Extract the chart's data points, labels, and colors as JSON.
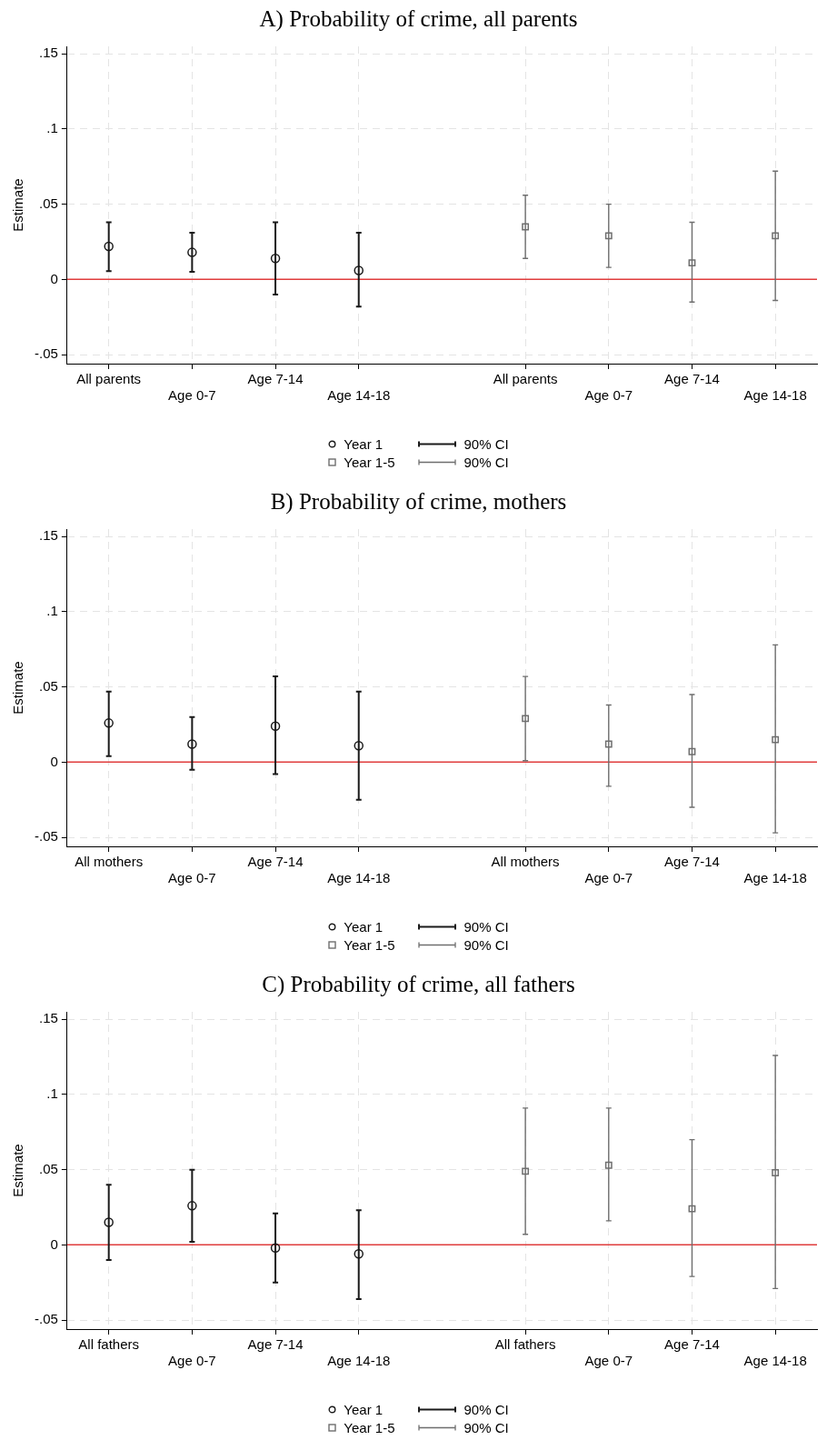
{
  "chart_data": [
    {
      "type": "scatter",
      "title": "A) Probability of crime, all parents",
      "ylabel": "Estimate",
      "categories": [
        "All parents",
        "Age 0-7",
        "Age 7-14",
        "Age 14-18",
        null,
        "All parents",
        "Age 0-7",
        "Age 7-14",
        "Age 14-18"
      ],
      "ylim": [
        -0.056,
        0.155
      ],
      "yticks": [
        {
          "value": -0.05,
          "label": "-.05"
        },
        {
          "value": 0,
          "label": "0"
        },
        {
          "value": 0.05,
          "label": ".05"
        },
        {
          "value": 0.1,
          "label": ".1"
        },
        {
          "value": 0.15,
          "label": ".15"
        }
      ],
      "grid": true,
      "legend": "bottom",
      "ref_lines": [
        {
          "axis": "y",
          "value": 0,
          "color": "#e03c3c"
        }
      ],
      "annotations": [
        "90% CI",
        "90% CI"
      ],
      "series": [
        {
          "name": "Year 1",
          "color": "#1a1a1a",
          "marker": "circle",
          "values": [
            0.022,
            0.018,
            0.014,
            0.006,
            null,
            null,
            null,
            null,
            null
          ],
          "errors": [
            [
              0.0055,
              0.038
            ],
            [
              0.005,
              0.031
            ],
            [
              -0.01,
              0.038
            ],
            [
              -0.018,
              0.031
            ],
            null,
            null,
            null,
            null,
            null
          ]
        },
        {
          "name": "Year 1-5",
          "color": "#6e6e6e",
          "marker": "square",
          "values": [
            null,
            null,
            null,
            null,
            null,
            0.035,
            0.029,
            0.011,
            0.029
          ],
          "errors": [
            null,
            null,
            null,
            null,
            null,
            [
              0.014,
              0.056
            ],
            [
              0.008,
              0.05
            ],
            [
              -0.015,
              0.038
            ],
            [
              -0.014,
              0.072
            ]
          ]
        }
      ]
    },
    {
      "type": "scatter",
      "title": "B) Probability of crime, mothers",
      "ylabel": "Estimate",
      "categories": [
        "All mothers",
        "Age 0-7",
        "Age 7-14",
        "Age 14-18",
        null,
        "All mothers",
        "Age 0-7",
        "Age 7-14",
        "Age 14-18"
      ],
      "ylim": [
        -0.056,
        0.155
      ],
      "yticks": [
        {
          "value": -0.05,
          "label": "-.05"
        },
        {
          "value": 0,
          "label": "0"
        },
        {
          "value": 0.05,
          "label": ".05"
        },
        {
          "value": 0.1,
          "label": ".1"
        },
        {
          "value": 0.15,
          "label": ".15"
        }
      ],
      "grid": true,
      "legend": "bottom",
      "ref_lines": [
        {
          "axis": "y",
          "value": 0,
          "color": "#e03c3c"
        }
      ],
      "annotations": [
        "90% CI",
        "90% CI"
      ],
      "series": [
        {
          "name": "Year 1",
          "color": "#1a1a1a",
          "marker": "circle",
          "values": [
            0.026,
            0.012,
            0.024,
            0.011,
            null,
            null,
            null,
            null,
            null
          ],
          "errors": [
            [
              0.004,
              0.047
            ],
            [
              -0.005,
              0.03
            ],
            [
              -0.008,
              0.057
            ],
            [
              -0.025,
              0.047
            ],
            null,
            null,
            null,
            null,
            null
          ]
        },
        {
          "name": "Year 1-5",
          "color": "#6e6e6e",
          "marker": "square",
          "values": [
            null,
            null,
            null,
            null,
            null,
            0.029,
            0.012,
            0.007,
            0.015
          ],
          "errors": [
            null,
            null,
            null,
            null,
            null,
            [
              0.001,
              0.057
            ],
            [
              -0.016,
              0.038
            ],
            [
              -0.03,
              0.045
            ],
            [
              -0.047,
              0.078
            ]
          ]
        }
      ]
    },
    {
      "type": "scatter",
      "title": "C) Probability of crime, all fathers",
      "ylabel": "Estimate",
      "categories": [
        "All fathers",
        "Age 0-7",
        "Age 7-14",
        "Age 14-18",
        null,
        "All fathers",
        "Age 0-7",
        "Age 7-14",
        "Age 14-18"
      ],
      "ylim": [
        -0.056,
        0.155
      ],
      "yticks": [
        {
          "value": -0.05,
          "label": "-.05"
        },
        {
          "value": 0,
          "label": "0"
        },
        {
          "value": 0.05,
          "label": ".05"
        },
        {
          "value": 0.1,
          "label": ".1"
        },
        {
          "value": 0.15,
          "label": ".15"
        }
      ],
      "grid": true,
      "legend": "bottom",
      "ref_lines": [
        {
          "axis": "y",
          "value": 0,
          "color": "#e03c3c"
        }
      ],
      "annotations": [
        "90% CI",
        "90% CI"
      ],
      "series": [
        {
          "name": "Year 1",
          "color": "#1a1a1a",
          "marker": "circle",
          "values": [
            0.015,
            0.026,
            -0.002,
            -0.006,
            null,
            null,
            null,
            null,
            null
          ],
          "errors": [
            [
              -0.01,
              0.04
            ],
            [
              0.002,
              0.05
            ],
            [
              -0.025,
              0.021
            ],
            [
              -0.036,
              0.023
            ],
            null,
            null,
            null,
            null,
            null
          ]
        },
        {
          "name": "Year 1-5",
          "color": "#6e6e6e",
          "marker": "square",
          "values": [
            null,
            null,
            null,
            null,
            null,
            0.049,
            0.053,
            0.024,
            0.048
          ],
          "errors": [
            null,
            null,
            null,
            null,
            null,
            [
              0.007,
              0.091
            ],
            [
              0.016,
              0.091
            ],
            [
              -0.021,
              0.07
            ],
            [
              -0.029,
              0.126
            ]
          ]
        }
      ]
    }
  ]
}
